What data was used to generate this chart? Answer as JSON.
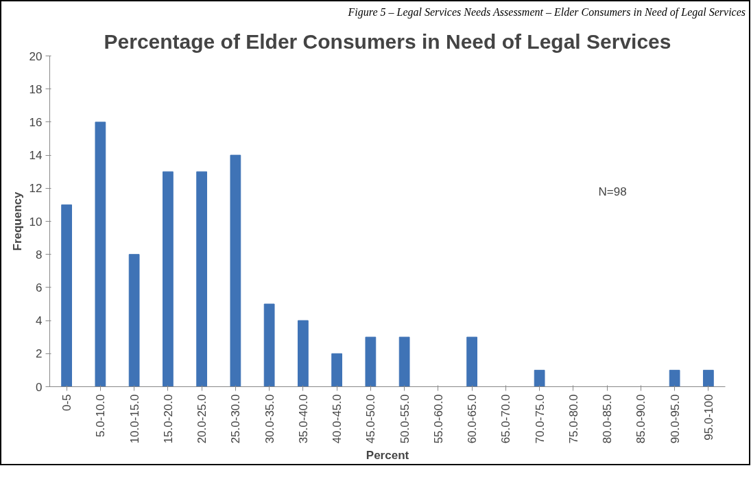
{
  "chart_data": {
    "type": "bar",
    "title": "Percentage of Elder Consumers in Need of Legal Services",
    "xlabel": "Percent",
    "ylabel": "Frequency",
    "categories": [
      "0-5",
      "5.0-10.0",
      "10.0-15.0",
      "15.0-20.0",
      "20.0-25.0",
      "25.0-30.0",
      "30.0-35.0",
      "35.0-40.0",
      "40.0-45.0",
      "45.0-50.0",
      "50.0-55.0",
      "55.0-60.0",
      "60.0-65.0",
      "65.0-70.0",
      "70.0-75.0",
      "75.0-80.0",
      "80.0-85.0",
      "85.0-90.0",
      "90.0-95.0",
      "95.0-100"
    ],
    "values": [
      11,
      16,
      8,
      13,
      13,
      14,
      5,
      4,
      2,
      3,
      3,
      0,
      3,
      0,
      1,
      0,
      0,
      0,
      1,
      1
    ],
    "color": "#3f73b6",
    "ylim": [
      0,
      20
    ],
    "yticks": [
      0,
      2,
      4,
      6,
      8,
      10,
      12,
      14,
      16,
      18,
      20
    ],
    "grid": false,
    "annotations": [
      "Figure 5 – Legal Services Needs Assessment – Elder Consumers in Need of Legal Services",
      "N=98"
    ]
  }
}
